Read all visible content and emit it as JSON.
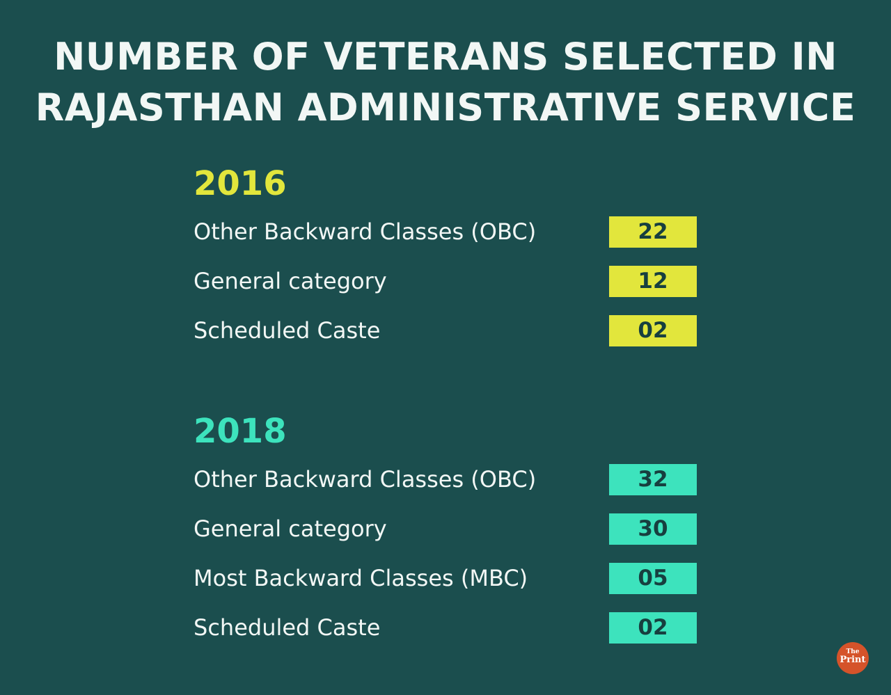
{
  "chart_data": {
    "type": "table",
    "title": [
      "NUMBER OF VETERANS SELECTED IN",
      "RAJASTHAN ADMINISTRATIVE SERVICE"
    ],
    "groups": [
      {
        "year": "2016",
        "color": "#e2e63c",
        "rows": [
          {
            "label": "Other Backward Classes (OBC)",
            "value": "22"
          },
          {
            "label": "General category",
            "value": "12"
          },
          {
            "label": "Scheduled Caste",
            "value": "02"
          }
        ]
      },
      {
        "year": "2018",
        "color": "#3de3bd",
        "rows": [
          {
            "label": "Other Backward Classes (OBC)",
            "value": "32"
          },
          {
            "label": "General category",
            "value": "30"
          },
          {
            "label": "Most Backward Classes (MBC)",
            "value": "05"
          },
          {
            "label": "Scheduled Caste",
            "value": "02"
          }
        ]
      }
    ]
  },
  "logo": {
    "line1": "The",
    "line2": "Print"
  }
}
